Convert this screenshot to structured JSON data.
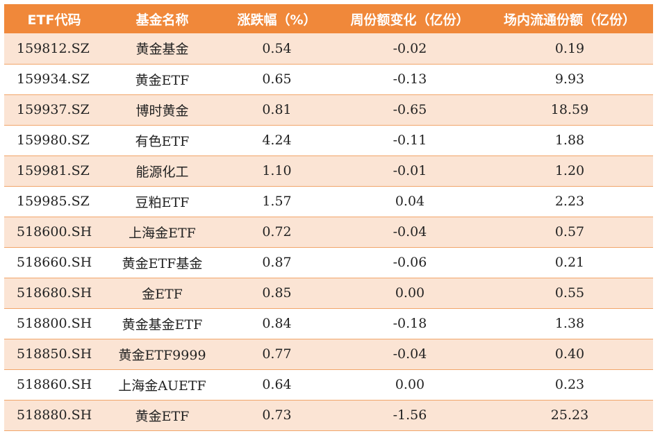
{
  "columns": [
    "ETF代码",
    "基金名称",
    "涨跌幅（%）",
    "周份额变化（亿份）",
    "场内流通份额（亿份）"
  ],
  "rows": [
    [
      "159812.SZ",
      "黄金基金",
      "0.54",
      "-0.02",
      "0.19"
    ],
    [
      "159934.SZ",
      "黄金ETF",
      "0.65",
      "-0.13",
      "9.93"
    ],
    [
      "159937.SZ",
      "博时黄金",
      "0.81",
      "-0.65",
      "18.59"
    ],
    [
      "159980.SZ",
      "有色ETF",
      "4.24",
      "-0.11",
      "1.88"
    ],
    [
      "159981.SZ",
      "能源化工",
      "1.10",
      "-0.01",
      "1.20"
    ],
    [
      "159985.SZ",
      "豆粕ETF",
      "1.57",
      "0.04",
      "2.23"
    ],
    [
      "518600.SH",
      "上海金ETF",
      "0.72",
      "-0.04",
      "0.57"
    ],
    [
      "518660.SH",
      "黄金ETF基金",
      "0.87",
      "-0.06",
      "0.21"
    ],
    [
      "518680.SH",
      "金ETF",
      "0.85",
      "0.00",
      "0.55"
    ],
    [
      "518800.SH",
      "黄金基金ETF",
      "0.84",
      "-0.18",
      "1.38"
    ],
    [
      "518850.SH",
      "黄金ETF9999",
      "0.77",
      "-0.04",
      "0.40"
    ],
    [
      "518860.SH",
      "上海金AUETF",
      "0.64",
      "0.00",
      "0.23"
    ],
    [
      "518880.SH",
      "黄金ETF",
      "0.73",
      "-1.56",
      "25.23"
    ]
  ],
  "colors": {
    "header_bg": "#f0883a",
    "header_text": "#ffffff",
    "row_shade": "#fbe4d4",
    "row_plain": "#ffffff",
    "divider": "#f1a56a"
  }
}
